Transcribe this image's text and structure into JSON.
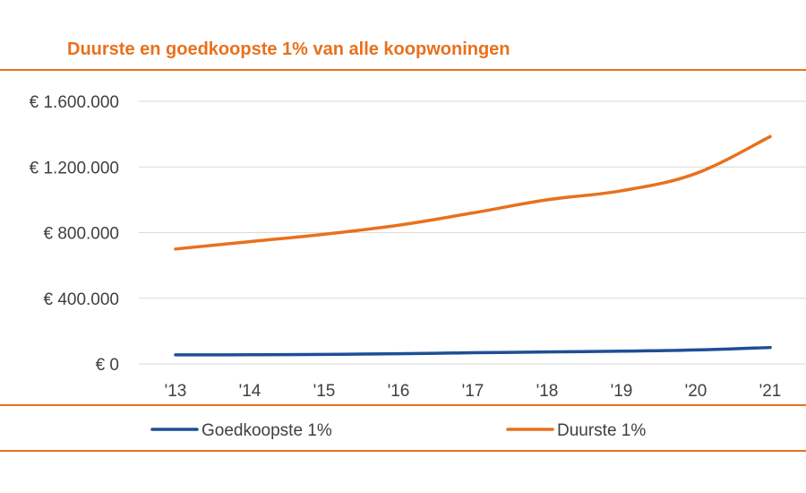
{
  "chart_data": {
    "type": "line",
    "title": "Duurste en goedkoopste 1% van alle koopwoningen",
    "categories": [
      "'13",
      "'14",
      "'15",
      "'16",
      "'17",
      "'18",
      "'19",
      "'20",
      "'21"
    ],
    "series": [
      {
        "name": "Goedkoopste 1%",
        "color": "#1f4e96",
        "values": [
          55000,
          56000,
          58000,
          62000,
          68000,
          73000,
          78000,
          85000,
          100000
        ]
      },
      {
        "name": "Duurste 1%",
        "color": "#e8711c",
        "values": [
          700000,
          745000,
          790000,
          845000,
          920000,
          1000000,
          1055000,
          1160000,
          1385000
        ]
      }
    ],
    "ylim": [
      0,
      1600000
    ],
    "yticks": [
      0,
      400000,
      800000,
      1200000,
      1600000
    ],
    "ytick_labels": [
      "€ 0",
      "€ 400.000",
      "€ 800.000",
      "€ 1.200.000",
      "€ 1.600.000"
    ],
    "grid": true,
    "legend_position": "bottom",
    "accent_color": "#e8711c",
    "grid_color": "#d9d9d9",
    "text_color": "#404040"
  }
}
